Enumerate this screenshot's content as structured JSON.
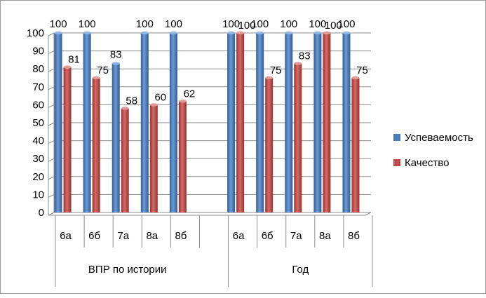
{
  "chart_data": {
    "type": "bar",
    "bar_style": "3d-cylinder",
    "ylim": [
      0,
      100
    ],
    "y_ticks": [
      0,
      10,
      20,
      30,
      40,
      50,
      60,
      70,
      80,
      90,
      100
    ],
    "grid": "horizontal",
    "legend_position": "right",
    "groups": [
      {
        "label": "ВПР по истории",
        "categories": [
          "6а",
          "6б",
          "7а",
          "8а",
          "8б"
        ]
      },
      {
        "label": "Год",
        "categories": [
          "6а",
          "6б",
          "7а",
          "8а",
          "8б"
        ]
      }
    ],
    "series": [
      {
        "name": "Успеваемость",
        "color": "#4A7EBB",
        "values": [
          100,
          100,
          83,
          100,
          100,
          100,
          100,
          100,
          100,
          100
        ]
      },
      {
        "name": "Качество",
        "color": "#BE4B48",
        "values": [
          81,
          75,
          58,
          60,
          62,
          100,
          75,
          83,
          100,
          75
        ]
      }
    ]
  }
}
